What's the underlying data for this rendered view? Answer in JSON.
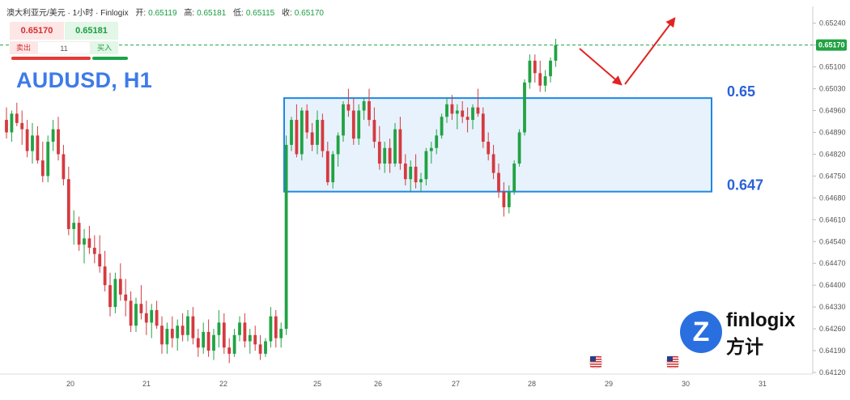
{
  "header": {
    "symbol": "澳大利亚元/美元 · 1小时 · Finlogix",
    "open_label": "开:",
    "open": "0.65119",
    "high_label": "高:",
    "high": "0.65181",
    "low_label": "低:",
    "low": "0.65115",
    "close_label": "收:",
    "close": "0.65170"
  },
  "trade_panel": {
    "sell_price": "0.65170",
    "buy_price": "0.65181",
    "sell_label": "卖出",
    "buy_label": "买入",
    "quantity": "11"
  },
  "logo": {
    "mark": "Z",
    "name": "finlogix",
    "name_zh": "方计"
  },
  "colors": {
    "up": "#21a344",
    "down": "#d43a40",
    "box_border": "#1e88e5",
    "box_fill": "#e8f2fd",
    "title": "#3d7bea",
    "level_label": "#2b62d9",
    "arrow": "#e02424",
    "price_line": "#21a344"
  },
  "chart_data": {
    "type": "candlestick",
    "title": "AUDUSD, H1",
    "x_ticks": [
      "20",
      "21",
      "22",
      "25",
      "26",
      "27",
      "28",
      "29",
      "30",
      "31"
    ],
    "y_ticks": [
      "0.65240",
      "0.65170",
      "0.65100",
      "0.65030",
      "0.64960",
      "0.64890",
      "0.64820",
      "0.64750",
      "0.64680",
      "0.64610",
      "0.64540",
      "0.64470",
      "0.64400",
      "0.64330",
      "0.64260",
      "0.64190",
      "0.64120"
    ],
    "ylim": [
      0.6412,
      0.6526
    ],
    "current_price": "0.65170",
    "range_box": {
      "top": 0.65,
      "bottom": 0.647,
      "top_label": "0.65",
      "bottom_label": "0.647"
    },
    "projection": "down-then-up",
    "event_flags": [
      "29",
      "30"
    ],
    "candles": [
      [
        0.6493,
        0.6497,
        0.6487,
        0.6489
      ],
      [
        0.6489,
        0.6496,
        0.6486,
        0.6495
      ],
      [
        0.6495,
        0.64985,
        0.6491,
        0.6492
      ],
      [
        0.6492,
        0.6496,
        0.6485,
        0.649
      ],
      [
        0.649,
        0.6493,
        0.6481,
        0.6483
      ],
      [
        0.6483,
        0.6492,
        0.6479,
        0.6488
      ],
      [
        0.6488,
        0.6491,
        0.6479,
        0.648
      ],
      [
        0.648,
        0.6486,
        0.6473,
        0.6475
      ],
      [
        0.6475,
        0.6488,
        0.6473,
        0.6486
      ],
      [
        0.6486,
        0.6493,
        0.6483,
        0.649
      ],
      [
        0.649,
        0.6494,
        0.648,
        0.6482
      ],
      [
        0.6482,
        0.6485,
        0.6472,
        0.6474
      ],
      [
        0.6474,
        0.6478,
        0.6456,
        0.6458
      ],
      [
        0.6458,
        0.6464,
        0.6453,
        0.646
      ],
      [
        0.646,
        0.6462,
        0.6451,
        0.6453
      ],
      [
        0.6453,
        0.6458,
        0.6447,
        0.6455
      ],
      [
        0.6455,
        0.6459,
        0.645,
        0.6452
      ],
      [
        0.6452,
        0.6456,
        0.6447,
        0.645
      ],
      [
        0.645,
        0.6456,
        0.6444,
        0.6446
      ],
      [
        0.6446,
        0.6451,
        0.6438,
        0.644
      ],
      [
        0.644,
        0.6444,
        0.643,
        0.6433
      ],
      [
        0.6433,
        0.6444,
        0.6431,
        0.6442
      ],
      [
        0.6442,
        0.6447,
        0.6435,
        0.6437
      ],
      [
        0.6437,
        0.6442,
        0.643,
        0.6435
      ],
      [
        0.6435,
        0.6438,
        0.6425,
        0.6427
      ],
      [
        0.6427,
        0.6436,
        0.6425,
        0.6434
      ],
      [
        0.6434,
        0.644,
        0.6429,
        0.6431
      ],
      [
        0.6431,
        0.6435,
        0.6424,
        0.6428
      ],
      [
        0.6428,
        0.6434,
        0.6423,
        0.6432
      ],
      [
        0.6432,
        0.6435,
        0.6426,
        0.6427
      ],
      [
        0.6427,
        0.643,
        0.6418,
        0.6421
      ],
      [
        0.6421,
        0.6428,
        0.6418,
        0.6426
      ],
      [
        0.6426,
        0.643,
        0.642,
        0.6423
      ],
      [
        0.6423,
        0.6429,
        0.6419,
        0.6427
      ],
      [
        0.6427,
        0.6431,
        0.6422,
        0.6424
      ],
      [
        0.6424,
        0.6432,
        0.6422,
        0.643
      ],
      [
        0.643,
        0.6433,
        0.6421,
        0.6423
      ],
      [
        0.6423,
        0.6426,
        0.6417,
        0.642
      ],
      [
        0.642,
        0.6428,
        0.6418,
        0.6425
      ],
      [
        0.6425,
        0.6429,
        0.6417,
        0.6419
      ],
      [
        0.6419,
        0.6426,
        0.6416,
        0.6424
      ],
      [
        0.6424,
        0.6432,
        0.642,
        0.6428
      ],
      [
        0.6428,
        0.6431,
        0.6418,
        0.642
      ],
      [
        0.642,
        0.6423,
        0.6415,
        0.6418
      ],
      [
        0.6418,
        0.6426,
        0.6417,
        0.6424
      ],
      [
        0.6424,
        0.643,
        0.6422,
        0.6428
      ],
      [
        0.6428,
        0.6431,
        0.642,
        0.6422
      ],
      [
        0.6422,
        0.6426,
        0.6418,
        0.6424
      ],
      [
        0.6424,
        0.6427,
        0.6419,
        0.6421
      ],
      [
        0.6421,
        0.6424,
        0.6416,
        0.6418
      ],
      [
        0.6418,
        0.6423,
        0.6417,
        0.6422
      ],
      [
        0.6422,
        0.6433,
        0.642,
        0.643
      ],
      [
        0.643,
        0.6432,
        0.642,
        0.6423
      ],
      [
        0.6423,
        0.6428,
        0.642,
        0.6426
      ],
      [
        0.6426,
        0.6488,
        0.6424,
        0.6485
      ],
      [
        0.6485,
        0.6494,
        0.6483,
        0.6493
      ],
      [
        0.6493,
        0.6498,
        0.6481,
        0.6482
      ],
      [
        0.6482,
        0.6497,
        0.648,
        0.6496
      ],
      [
        0.6496,
        0.6498,
        0.6487,
        0.6489
      ],
      [
        0.6489,
        0.6492,
        0.6483,
        0.6485
      ],
      [
        0.6485,
        0.6496,
        0.6482,
        0.6493
      ],
      [
        0.6493,
        0.6495,
        0.6481,
        0.6483
      ],
      [
        0.6483,
        0.6486,
        0.6472,
        0.6473
      ],
      [
        0.6473,
        0.6483,
        0.6471,
        0.6482
      ],
      [
        0.6482,
        0.6489,
        0.6478,
        0.6488
      ],
      [
        0.6488,
        0.6499,
        0.6486,
        0.6498
      ],
      [
        0.6498,
        0.6503,
        0.6494,
        0.6496
      ],
      [
        0.6496,
        0.65,
        0.6485,
        0.6487
      ],
      [
        0.6487,
        0.6498,
        0.6485,
        0.6496
      ],
      [
        0.6496,
        0.65,
        0.6493,
        0.6499
      ],
      [
        0.6499,
        0.6503,
        0.6491,
        0.6493
      ],
      [
        0.6493,
        0.6497,
        0.6484,
        0.6486
      ],
      [
        0.6486,
        0.6491,
        0.6477,
        0.6479
      ],
      [
        0.6479,
        0.6486,
        0.6476,
        0.6484
      ],
      [
        0.6484,
        0.6487,
        0.6476,
        0.6479
      ],
      [
        0.6479,
        0.6492,
        0.6478,
        0.649
      ],
      [
        0.649,
        0.6494,
        0.6477,
        0.6479
      ],
      [
        0.6479,
        0.6482,
        0.6472,
        0.6474
      ],
      [
        0.6474,
        0.648,
        0.647,
        0.6478
      ],
      [
        0.6478,
        0.6482,
        0.6471,
        0.6473
      ],
      [
        0.6473,
        0.6476,
        0.647,
        0.6474
      ],
      [
        0.6474,
        0.6484,
        0.6472,
        0.6483
      ],
      [
        0.6483,
        0.6486,
        0.6479,
        0.6484
      ],
      [
        0.6484,
        0.649,
        0.6482,
        0.6488
      ],
      [
        0.6488,
        0.6495,
        0.6487,
        0.6494
      ],
      [
        0.6494,
        0.65,
        0.6492,
        0.6498
      ],
      [
        0.6498,
        0.6501,
        0.6493,
        0.6495
      ],
      [
        0.6495,
        0.6498,
        0.649,
        0.6496
      ],
      [
        0.6496,
        0.6499,
        0.6492,
        0.6494
      ],
      [
        0.6494,
        0.6497,
        0.6489,
        0.6493
      ],
      [
        0.6493,
        0.6498,
        0.649,
        0.6497
      ],
      [
        0.6497,
        0.6503,
        0.6494,
        0.6495
      ],
      [
        0.6495,
        0.6497,
        0.6484,
        0.6486
      ],
      [
        0.6486,
        0.6489,
        0.648,
        0.6482
      ],
      [
        0.6482,
        0.6485,
        0.6474,
        0.6476
      ],
      [
        0.6476,
        0.6479,
        0.6468,
        0.647
      ],
      [
        0.647,
        0.6473,
        0.6462,
        0.6465
      ],
      [
        0.6465,
        0.6472,
        0.6463,
        0.647
      ],
      [
        0.647,
        0.648,
        0.6469,
        0.6479
      ],
      [
        0.6479,
        0.649,
        0.6478,
        0.6489
      ],
      [
        0.6489,
        0.6506,
        0.6488,
        0.6505
      ],
      [
        0.6505,
        0.6514,
        0.6503,
        0.6512
      ],
      [
        0.6512,
        0.6514,
        0.6505,
        0.6508
      ],
      [
        0.6508,
        0.6512,
        0.6502,
        0.6504
      ],
      [
        0.6504,
        0.6509,
        0.6502,
        0.6507
      ],
      [
        0.6507,
        0.6513,
        0.6505,
        0.6512
      ],
      [
        0.6512,
        0.6519,
        0.651,
        0.6517
      ]
    ]
  }
}
